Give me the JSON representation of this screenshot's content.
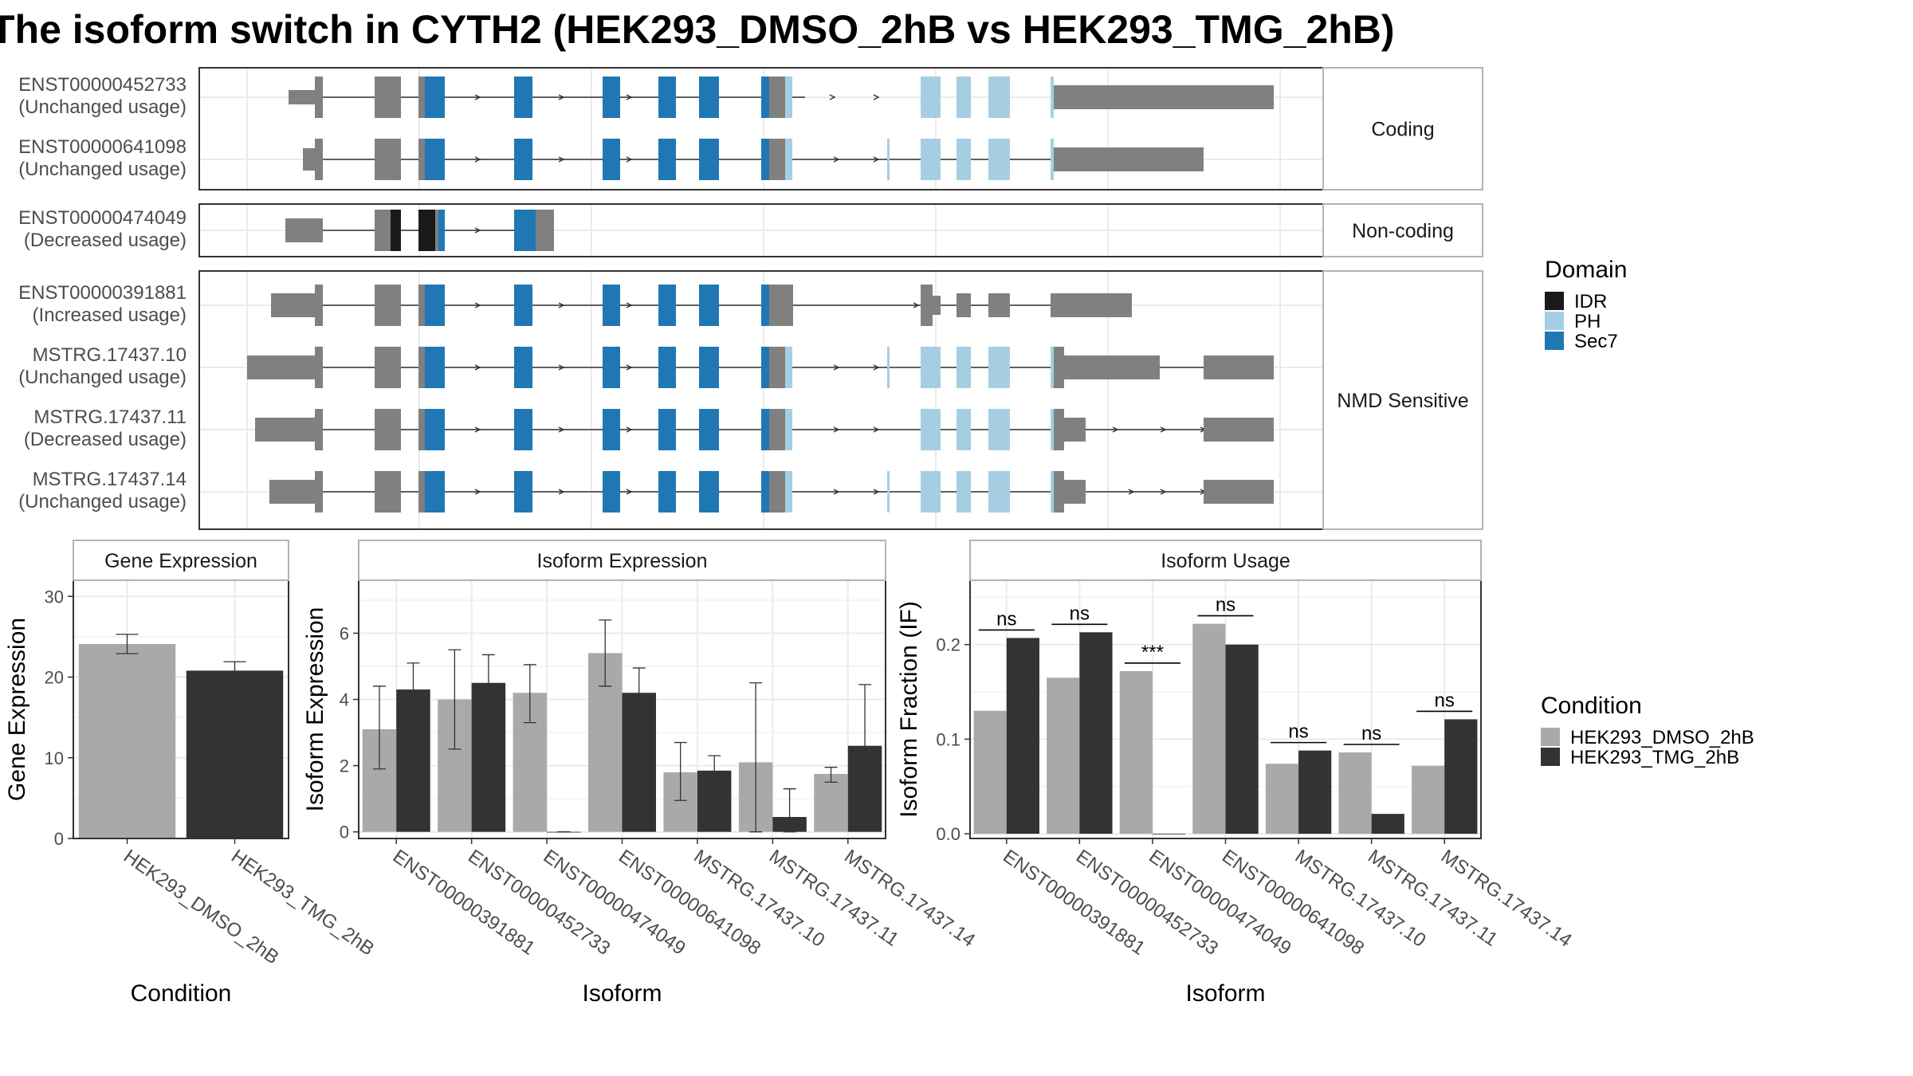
{
  "title": "The isoform switch in CYTH2 (HEK293_DMSO_2hB vs HEK293_TMG_2hB)",
  "colors": {
    "IDR": "#1a1a1a",
    "PH": "#a6cee3",
    "Sec7": "#1f78b4",
    "exon": "#808080",
    "DMSO": "#a9a9a9",
    "TMG": "#333333",
    "grid": "#ebebeb",
    "panel_border": "#333333",
    "strip_fill": "#ffffff"
  },
  "transcript_panel": {
    "groups": [
      {
        "label": "Coding",
        "transcripts": [
          {
            "id": "ENST00000452733",
            "usage": "(Unchanged usage)"
          },
          {
            "id": "ENST00000641098",
            "usage": "(Unchanged usage)"
          }
        ]
      },
      {
        "label": "Non-coding",
        "transcripts": [
          {
            "id": "ENST00000474049",
            "usage": "(Decreased usage)"
          }
        ]
      },
      {
        "label": "NMD Sensitive",
        "transcripts": [
          {
            "id": "ENST00000391881",
            "usage": "(Increased usage)"
          },
          {
            "id": "MSTRG.17437.10",
            "usage": "(Unchanged usage)"
          },
          {
            "id": "MSTRG.17437.11",
            "usage": "(Decreased usage)"
          },
          {
            "id": "MSTRG.17437.14",
            "usage": "(Unchanged usage)"
          }
        ]
      }
    ]
  },
  "domain_legend": {
    "title": "Domain",
    "items": [
      {
        "name": "IDR",
        "color": "#1a1a1a"
      },
      {
        "name": "PH",
        "color": "#a6cee3"
      },
      {
        "name": "Sec7",
        "color": "#1f78b4"
      }
    ]
  },
  "condition_legend": {
    "title": "Condition",
    "items": [
      {
        "name": "HEK293_DMSO_2hB",
        "color": "#a9a9a9"
      },
      {
        "name": "HEK293_TMG_2hB",
        "color": "#333333"
      }
    ]
  },
  "chart_data": [
    {
      "type": "bar",
      "title": "Gene Expression",
      "xlabel": "Condition",
      "ylabel": "Gene Expression",
      "categories": [
        "HEK293_DMSO_2hB",
        "HEK293_TMG_2hB"
      ],
      "values": [
        24.1,
        20.8
      ],
      "error_low": [
        22.9,
        19.8
      ],
      "error_high": [
        25.3,
        21.9
      ],
      "ylim": [
        0,
        32
      ],
      "yticks": [
        0,
        10,
        20,
        30
      ],
      "grid": true
    },
    {
      "type": "bar",
      "title": "Isoform Expression",
      "xlabel": "Isoform",
      "ylabel": "Isoform Expression",
      "categories": [
        "ENST00000391881",
        "ENST00000452733",
        "ENST00000474049",
        "ENST00000641098",
        "MSTRG.17437.10",
        "MSTRG.17437.11",
        "MSTRG.17437.14"
      ],
      "series": [
        {
          "name": "HEK293_DMSO_2hB",
          "values": [
            3.1,
            4.0,
            4.2,
            5.4,
            1.8,
            2.1,
            1.75
          ],
          "error_low": [
            1.9,
            2.5,
            3.3,
            4.4,
            0.95,
            0.0,
            1.5
          ],
          "error_high": [
            4.4,
            5.5,
            5.05,
            6.4,
            2.7,
            4.5,
            1.95
          ]
        },
        {
          "name": "HEK293_TMG_2hB",
          "values": [
            4.3,
            4.5,
            0.0,
            4.2,
            1.85,
            0.45,
            2.6
          ],
          "error_low": [
            3.6,
            3.6,
            0.0,
            3.4,
            1.4,
            0.0,
            0.75
          ],
          "error_high": [
            5.1,
            5.35,
            0.0,
            4.95,
            2.3,
            1.3,
            4.45
          ]
        }
      ],
      "ylim": [
        -0.2,
        7.6
      ],
      "yticks": [
        0,
        2,
        4,
        6
      ],
      "grid": true
    },
    {
      "type": "bar",
      "title": "Isoform Usage",
      "xlabel": "Isoform",
      "ylabel": "Isoform Fraction (IF)",
      "categories": [
        "ENST00000391881",
        "ENST00000452733",
        "ENST00000474049",
        "ENST00000641098",
        "MSTRG.17437.10",
        "MSTRG.17437.11",
        "MSTRG.17437.14"
      ],
      "series": [
        {
          "name": "HEK293_DMSO_2hB",
          "values": [
            0.13,
            0.165,
            0.172,
            0.222,
            0.074,
            0.086,
            0.072
          ]
        },
        {
          "name": "HEK293_TMG_2hB",
          "values": [
            0.207,
            0.213,
            0.0,
            0.2,
            0.088,
            0.021,
            0.121
          ]
        }
      ],
      "significance": [
        "ns",
        "ns",
        "***",
        "ns",
        "ns",
        "ns",
        "ns"
      ],
      "ylim": [
        -0.005,
        0.268
      ],
      "yticks": [
        0.0,
        0.1,
        0.2
      ],
      "ytick_labels": [
        "0.0",
        "0.1",
        "0.2"
      ],
      "grid": true
    }
  ]
}
